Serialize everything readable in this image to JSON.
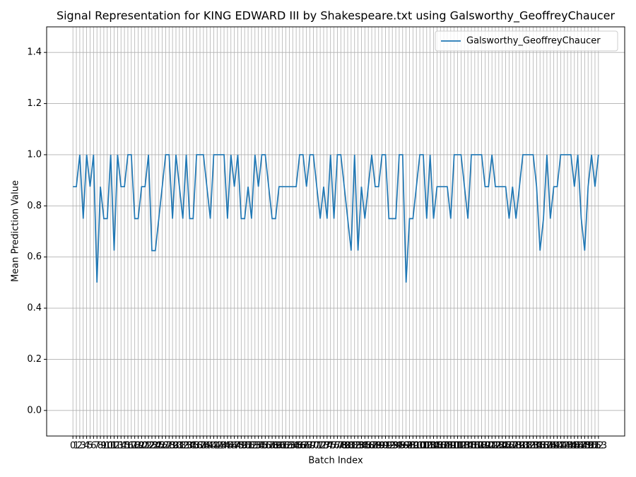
{
  "chart_data": {
    "type": "line",
    "title": "Signal Representation for KING EDWARD III by Shakespeare.txt using Galsworthy_GeoffreyChaucer",
    "x_label": "Batch Index",
    "y_label": "Mean Prediction Value",
    "x": [
      0,
      1,
      2,
      3,
      4,
      5,
      6,
      7,
      8,
      9,
      10,
      11,
      12,
      13,
      14,
      15,
      16,
      17,
      18,
      19,
      20,
      21,
      22,
      23,
      24,
      25,
      26,
      27,
      28,
      29,
      30,
      31,
      32,
      33,
      34,
      35,
      36,
      37,
      38,
      39,
      40,
      41,
      42,
      43,
      44,
      45,
      46,
      47,
      48,
      49,
      50,
      51,
      52,
      53,
      54,
      55,
      56,
      57,
      58,
      59,
      60,
      61,
      62,
      63,
      64,
      65,
      66,
      67,
      68,
      69,
      70,
      71,
      72,
      73,
      74,
      75,
      76,
      77,
      78,
      79,
      80,
      81,
      82,
      83,
      84,
      85,
      86,
      87,
      88,
      89,
      90,
      91,
      92,
      93,
      94,
      95,
      96,
      97,
      98,
      99,
      100,
      101,
      102,
      103,
      104,
      105,
      106,
      107,
      108,
      109,
      110,
      111,
      112,
      113,
      114,
      115,
      116,
      117,
      118,
      119,
      120,
      121,
      122,
      123,
      124,
      125,
      126,
      127,
      128,
      129,
      130,
      131,
      132,
      133,
      134,
      135,
      136,
      137,
      138,
      139,
      140,
      141,
      142,
      143,
      144,
      145,
      146,
      147,
      148,
      149,
      150,
      151,
      152,
      153
    ],
    "series": [
      {
        "name": "Galsworthy_GeoffreyChaucer",
        "color": "#1f77b4",
        "values": [
          0.875,
          0.875,
          1,
          0.75,
          1,
          0.875,
          1,
          0.5,
          0.875,
          0.75,
          0.75,
          1,
          0.625,
          1,
          0.875,
          0.875,
          1,
          1,
          0.75,
          0.75,
          0.875,
          0.875,
          1,
          0.625,
          0.625,
          0.75,
          0.875,
          1,
          1,
          0.75,
          1,
          0.875,
          0.75,
          1,
          0.75,
          0.75,
          1,
          1,
          1,
          0.875,
          0.75,
          1,
          1,
          1,
          1,
          0.75,
          1,
          0.875,
          1,
          0.75,
          0.75,
          0.875,
          0.75,
          1,
          0.875,
          1,
          1,
          0.875,
          0.75,
          0.75,
          0.875,
          0.875,
          0.875,
          0.875,
          0.875,
          0.875,
          1,
          1,
          0.875,
          1,
          1,
          0.875,
          0.75,
          0.875,
          0.75,
          1,
          0.75,
          1,
          1,
          0.875,
          0.75,
          0.625,
          1,
          0.625,
          0.875,
          0.75,
          0.875,
          1,
          0.875,
          0.875,
          1,
          1,
          0.75,
          0.75,
          0.75,
          1,
          1,
          0.5,
          0.75,
          0.75,
          0.875,
          1,
          1,
          0.75,
          1,
          0.75,
          0.875,
          0.875,
          0.875,
          0.875,
          0.75,
          1,
          1,
          1,
          0.875,
          0.75,
          1,
          1,
          1,
          1,
          0.875,
          0.875,
          1,
          0.875,
          0.875,
          0.875,
          0.875,
          0.75,
          0.875,
          0.75,
          0.875,
          1,
          1,
          1,
          1,
          0.875,
          0.625,
          0.75,
          1,
          0.75,
          0.875,
          0.875,
          1,
          1,
          1,
          1,
          0.875,
          1,
          0.75,
          0.625,
          0.875,
          1,
          0.875,
          1
        ]
      }
    ],
    "xlim": [
      -7.65,
      160.65
    ],
    "xticks": [
      0,
      1,
      2,
      3,
      4,
      5,
      6,
      7,
      8,
      9,
      10,
      11,
      12,
      13,
      14,
      15,
      16,
      17,
      18,
      19,
      20,
      21,
      22,
      23,
      24,
      25,
      26,
      27,
      28,
      29,
      30,
      31,
      32,
      33,
      34,
      35,
      36,
      37,
      38,
      39,
      40,
      41,
      42,
      43,
      44,
      45,
      46,
      47,
      48,
      49,
      50,
      51,
      52,
      53,
      54,
      55,
      56,
      57,
      58,
      59,
      60,
      61,
      62,
      63,
      64,
      65,
      66,
      67,
      68,
      69,
      70,
      71,
      72,
      73,
      74,
      75,
      76,
      77,
      78,
      79,
      80,
      81,
      82,
      83,
      84,
      85,
      86,
      87,
      88,
      89,
      90,
      91,
      92,
      93,
      94,
      95,
      96,
      97,
      98,
      99,
      100,
      101,
      102,
      103,
      104,
      105,
      106,
      107,
      108,
      109,
      110,
      111,
      112,
      113,
      114,
      115,
      116,
      117,
      118,
      119,
      120,
      121,
      122,
      123,
      124,
      125,
      126,
      127,
      128,
      129,
      130,
      131,
      132,
      133,
      134,
      135,
      136,
      137,
      138,
      139,
      140,
      141,
      142,
      143,
      144,
      145,
      146,
      147,
      148,
      149,
      150,
      151,
      152,
      153
    ],
    "ylim": [
      -0.1,
      1.5
    ],
    "yticks": [
      {
        "value": 0,
        "label": "0.0"
      },
      0.2,
      0.4,
      0.6,
      0.8,
      {
        "value": 1,
        "label": "1.0"
      },
      1.2,
      1.4
    ],
    "grid": true,
    "legend": "upper right"
  }
}
